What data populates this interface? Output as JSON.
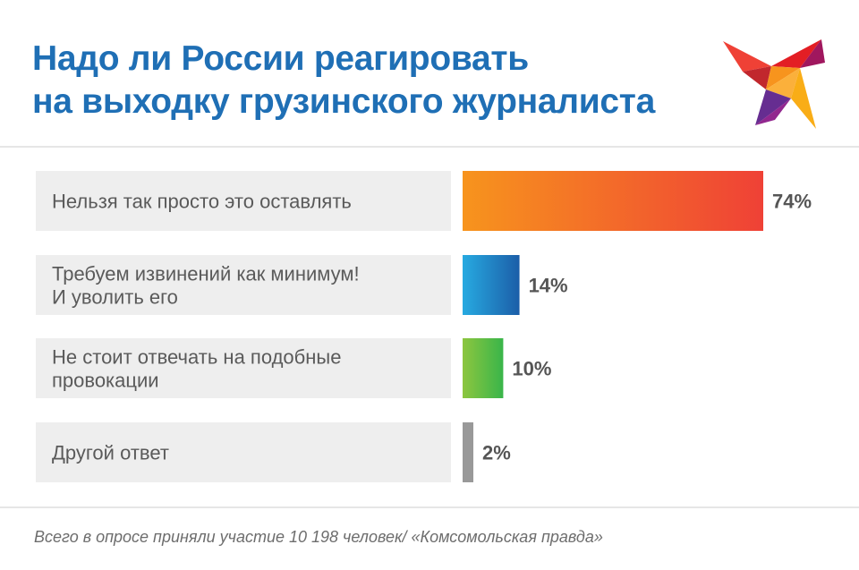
{
  "title": {
    "line1": "Надо ли России реагировать",
    "line2": "на выходку грузинского журналиста"
  },
  "logo_icon": "swallow-bird-icon",
  "colors": {
    "title": "#1f6fb5",
    "label_background": "#eeeeee",
    "bar1": [
      "#f7941d",
      "#ef4136"
    ],
    "bar2": [
      "#27aae1",
      "#1c5ea8"
    ],
    "bar3": [
      "#8dc63f",
      "#39b54a"
    ],
    "bar4": [
      "#999999",
      "#999999"
    ]
  },
  "chart_data": {
    "type": "bar",
    "orientation": "horizontal",
    "categories": [
      [
        "Нельзя так просто это оставлять"
      ],
      [
        "Требуем извинений как минимум!",
        "И уволить его"
      ],
      [
        "Не стоит отвечать на подобные",
        "провокации"
      ],
      [
        "Другой ответ"
      ]
    ],
    "values": [
      74,
      14,
      10,
      2
    ],
    "value_labels": [
      "74%",
      "14%",
      "10%",
      "2%"
    ],
    "unit": "%",
    "grid": false,
    "legend": "none"
  },
  "footer": "Всего в опросе приняли участие 10 198 человек/ «Комсомольская правда»"
}
